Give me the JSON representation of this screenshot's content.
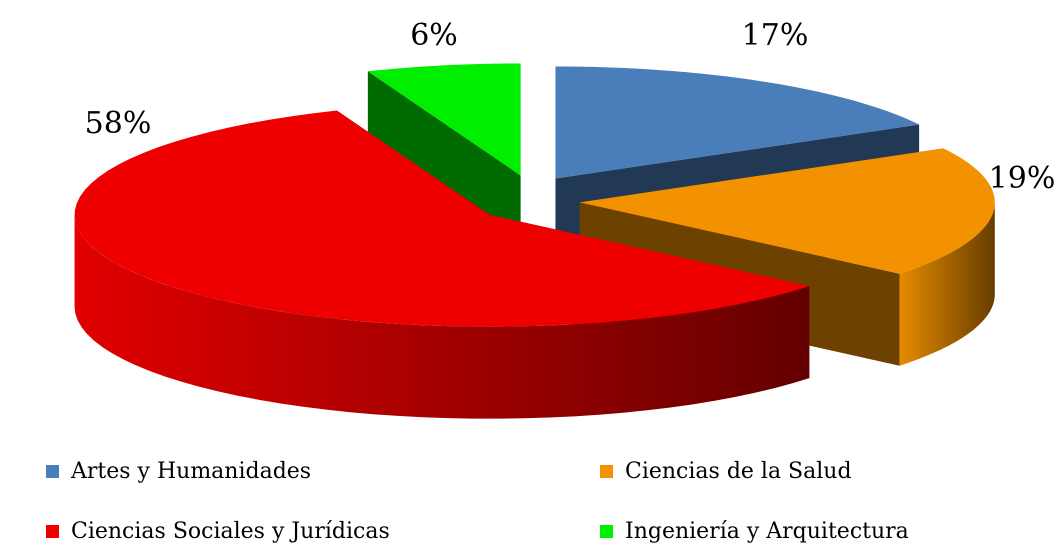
{
  "chart_data": {
    "type": "pie3d",
    "categories": [
      "Artes y Humanidades",
      "Ciencias de la Salud",
      "Ciencias Sociales y Jurídicas",
      "Ingeniería y Arquitectura"
    ],
    "values": [
      17,
      19,
      58,
      6
    ],
    "value_labels": [
      "17%",
      "19%",
      "58%",
      "6%"
    ],
    "colors": [
      "#4a7ebb",
      "#f39200",
      "#ee0000",
      "#00ee00"
    ]
  }
}
